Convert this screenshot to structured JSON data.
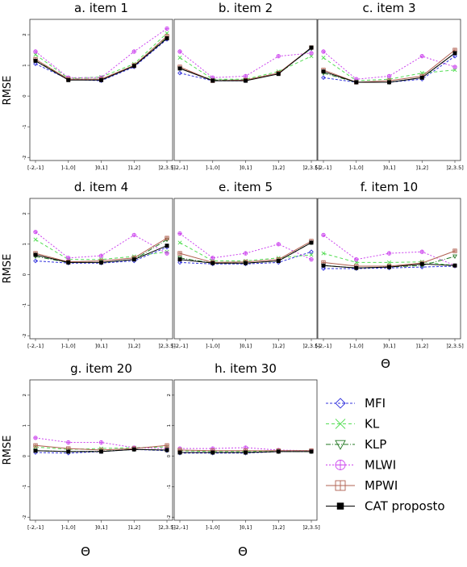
{
  "chart_data": {
    "type": "line",
    "categories": [
      "[-2,-1]",
      "]-1,0]",
      "]0,1]",
      "]1,2]",
      "]2,3.5]"
    ],
    "ylabel": "RMSE",
    "xlabel": "Θ",
    "ylim": [
      -2.1,
      2.5
    ],
    "yticks": [
      "-2",
      "-1",
      "0",
      "1",
      "2"
    ],
    "legend": {
      "position": "bottom-right",
      "entries": [
        {
          "name": "MFI",
          "color": "#3333dd",
          "dash": "3,2",
          "marker": "diamond"
        },
        {
          "name": "KL",
          "color": "#55dd55",
          "dash": "4,3",
          "marker": "x"
        },
        {
          "name": "KLP",
          "color": "#227722",
          "dash": "6,2,1,2",
          "marker": "triangle"
        },
        {
          "name": "MLWI",
          "color": "#cc44ee",
          "dash": "2,2",
          "marker": "circleplus"
        },
        {
          "name": "MPWI",
          "color": "#b06050",
          "dash": "",
          "marker": "squareplus"
        },
        {
          "name": "CAT proposto",
          "color": "#000000",
          "dash": "",
          "marker": "square"
        }
      ]
    },
    "panels": [
      {
        "title": "a. item 1",
        "series": [
          {
            "name": "MFI",
            "values": [
              1.05,
              0.55,
              0.5,
              0.95,
              1.85
            ]
          },
          {
            "name": "KL",
            "values": [
              1.35,
              0.58,
              0.62,
              1.05,
              2.05
            ]
          },
          {
            "name": "KLP",
            "values": [
              1.15,
              0.56,
              0.55,
              1.0,
              1.9
            ]
          },
          {
            "name": "MLWI",
            "values": [
              1.45,
              0.6,
              0.6,
              1.45,
              2.2
            ]
          },
          {
            "name": "MPWI",
            "values": [
              1.2,
              0.55,
              0.55,
              1.0,
              1.95
            ]
          },
          {
            "name": "CAT proposto",
            "values": [
              1.15,
              0.52,
              0.52,
              0.98,
              1.88
            ]
          }
        ]
      },
      {
        "title": "b. item 2",
        "series": [
          {
            "name": "MFI",
            "values": [
              0.75,
              0.5,
              0.5,
              0.75,
              1.55
            ]
          },
          {
            "name": "KL",
            "values": [
              1.25,
              0.55,
              0.55,
              0.8,
              1.3
            ]
          },
          {
            "name": "KLP",
            "values": [
              0.9,
              0.52,
              0.52,
              0.75,
              1.55
            ]
          },
          {
            "name": "MLWI",
            "values": [
              1.45,
              0.6,
              0.65,
              1.3,
              1.4
            ]
          },
          {
            "name": "MPWI",
            "values": [
              0.95,
              0.5,
              0.52,
              0.75,
              1.58
            ]
          },
          {
            "name": "CAT proposto",
            "values": [
              0.9,
              0.5,
              0.5,
              0.72,
              1.58
            ]
          }
        ]
      },
      {
        "title": "c. item 3",
        "series": [
          {
            "name": "MFI",
            "values": [
              0.6,
              0.45,
              0.45,
              0.55,
              1.3
            ]
          },
          {
            "name": "KL",
            "values": [
              1.25,
              0.5,
              0.55,
              0.75,
              0.85
            ]
          },
          {
            "name": "KLP",
            "values": [
              0.75,
              0.45,
              0.45,
              0.6,
              1.4
            ]
          },
          {
            "name": "MLWI",
            "values": [
              1.45,
              0.55,
              0.65,
              1.3,
              0.95
            ]
          },
          {
            "name": "MPWI",
            "values": [
              0.85,
              0.45,
              0.5,
              0.65,
              1.5
            ]
          },
          {
            "name": "CAT proposto",
            "values": [
              0.8,
              0.45,
              0.45,
              0.6,
              1.4
            ]
          }
        ]
      },
      {
        "title": "d. item 4",
        "series": [
          {
            "name": "MFI",
            "values": [
              0.45,
              0.38,
              0.38,
              0.45,
              0.9
            ]
          },
          {
            "name": "KL",
            "values": [
              1.15,
              0.5,
              0.5,
              0.6,
              0.75
            ]
          },
          {
            "name": "KLP",
            "values": [
              0.6,
              0.4,
              0.4,
              0.5,
              1.15
            ]
          },
          {
            "name": "MLWI",
            "values": [
              1.4,
              0.55,
              0.62,
              1.3,
              0.7
            ]
          },
          {
            "name": "MPWI",
            "values": [
              0.7,
              0.42,
              0.45,
              0.55,
              1.2
            ]
          },
          {
            "name": "CAT proposto",
            "values": [
              0.65,
              0.4,
              0.4,
              0.5,
              0.95
            ]
          }
        ]
      },
      {
        "title": "e. item 5",
        "series": [
          {
            "name": "MFI",
            "values": [
              0.4,
              0.35,
              0.35,
              0.4,
              0.75
            ]
          },
          {
            "name": "KL",
            "values": [
              1.05,
              0.45,
              0.45,
              0.55,
              0.65
            ]
          },
          {
            "name": "KLP",
            "values": [
              0.55,
              0.38,
              0.38,
              0.45,
              1.05
            ]
          },
          {
            "name": "MLWI",
            "values": [
              1.35,
              0.55,
              0.7,
              1.0,
              0.5
            ]
          },
          {
            "name": "MPWI",
            "values": [
              0.7,
              0.4,
              0.42,
              0.5,
              1.1
            ]
          },
          {
            "name": "CAT proposto",
            "values": [
              0.5,
              0.38,
              0.38,
              0.45,
              1.05
            ]
          }
        ]
      },
      {
        "title": "f. item 10",
        "series": [
          {
            "name": "MFI",
            "values": [
              0.2,
              0.2,
              0.22,
              0.25,
              0.28
            ]
          },
          {
            "name": "KL",
            "values": [
              0.7,
              0.4,
              0.4,
              0.42,
              0.3
            ]
          },
          {
            "name": "KLP",
            "values": [
              0.3,
              0.22,
              0.25,
              0.3,
              0.6
            ]
          },
          {
            "name": "MLWI",
            "values": [
              1.3,
              0.5,
              0.7,
              0.75,
              0.3
            ]
          },
          {
            "name": "MPWI",
            "values": [
              0.4,
              0.28,
              0.28,
              0.38,
              0.78
            ]
          },
          {
            "name": "CAT proposto",
            "values": [
              0.3,
              0.22,
              0.25,
              0.35,
              0.3
            ]
          }
        ]
      },
      {
        "title": "g. item 20",
        "series": [
          {
            "name": "MFI",
            "values": [
              0.12,
              0.1,
              0.15,
              0.22,
              0.18
            ]
          },
          {
            "name": "KL",
            "values": [
              0.3,
              0.22,
              0.25,
              0.28,
              0.3
            ]
          },
          {
            "name": "KLP",
            "values": [
              0.18,
              0.15,
              0.16,
              0.22,
              0.2
            ]
          },
          {
            "name": "MLWI",
            "values": [
              0.6,
              0.45,
              0.45,
              0.28,
              0.25
            ]
          },
          {
            "name": "MPWI",
            "values": [
              0.35,
              0.25,
              0.2,
              0.25,
              0.35
            ]
          },
          {
            "name": "CAT proposto",
            "values": [
              0.18,
              0.15,
              0.15,
              0.22,
              0.2
            ]
          }
        ]
      },
      {
        "title": "h. item 30",
        "series": [
          {
            "name": "MFI",
            "values": [
              0.1,
              0.1,
              0.1,
              0.15,
              0.15
            ]
          },
          {
            "name": "KL",
            "values": [
              0.18,
              0.15,
              0.15,
              0.18,
              0.18
            ]
          },
          {
            "name": "KLP",
            "values": [
              0.12,
              0.12,
              0.12,
              0.15,
              0.15
            ]
          },
          {
            "name": "MLWI",
            "values": [
              0.25,
              0.25,
              0.28,
              0.2,
              0.18
            ]
          },
          {
            "name": "MPWI",
            "values": [
              0.2,
              0.18,
              0.18,
              0.18,
              0.18
            ]
          },
          {
            "name": "CAT proposto",
            "values": [
              0.12,
              0.12,
              0.12,
              0.15,
              0.15
            ]
          }
        ]
      }
    ]
  }
}
